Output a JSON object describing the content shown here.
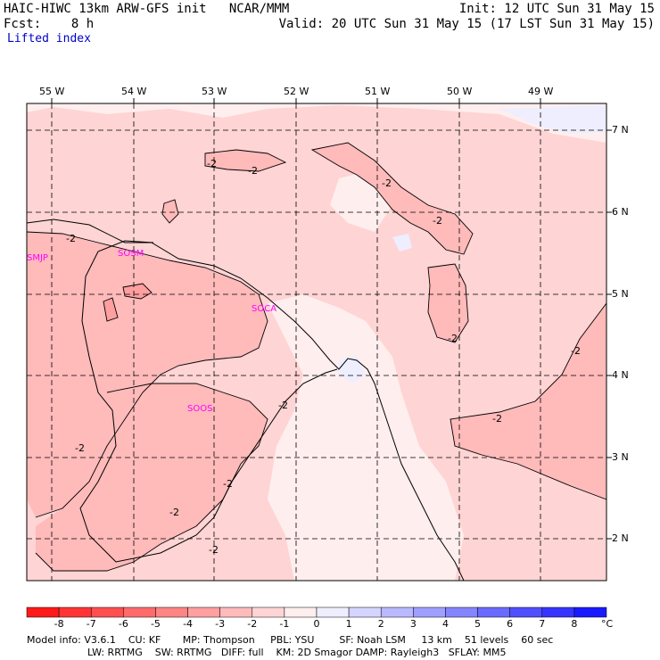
{
  "header": {
    "title_left": "HAIC-HIWC 13km ARW-GFS init   NCAR/MMM",
    "fcst": "Fcst:    8 h",
    "field": "Lifted index",
    "init": "Init: 12 UTC Sun 31 May 15",
    "valid": "Valid: 20 UTC Sun 31 May 15 (17 LST Sun 31 May 15)"
  },
  "map": {
    "lon_labels": [
      "55 W",
      "54 W",
      "53 W",
      "52 W",
      "51 W",
      "50 W",
      "49 W"
    ],
    "lat_labels": [
      "7 N",
      "6 N",
      "5 N",
      "4 N",
      "3 N",
      "2 N"
    ],
    "stations": [
      "SMJP",
      "SOCA",
      "SOSM",
      "SOOS"
    ],
    "contour_label": "-2"
  },
  "colorbar": {
    "ticks": [
      "-8",
      "-7",
      "-6",
      "-5",
      "-4",
      "-3",
      "-2",
      "-1",
      "0",
      "1",
      "2",
      "3",
      "4",
      "5",
      "6",
      "7",
      "8"
    ],
    "unit": "°C",
    "colors": [
      "#ff1a1a",
      "#ff3535",
      "#ff4f4f",
      "#ff6a6a",
      "#ff8484",
      "#ff9f9f",
      "#ffbaba",
      "#ffd4d4",
      "#ffeeee",
      "#eeeeff",
      "#d4d4ff",
      "#b9b9ff",
      "#9f9fff",
      "#8484ff",
      "#6a6aff",
      "#4f4fff",
      "#3535ff",
      "#1a1aff"
    ]
  },
  "model_info": {
    "line1": "Model info: V3.6.1    CU: KF       MP: Thompson     PBL: YSU        SF: Noah LSM     13 km    51 levels    60 sec",
    "line2": "LW: RRTMG    SW: RRTMG   DIFF: full    KM: 2D Smagor DAMP: Rayleigh3   SFLAY: MM5"
  }
}
